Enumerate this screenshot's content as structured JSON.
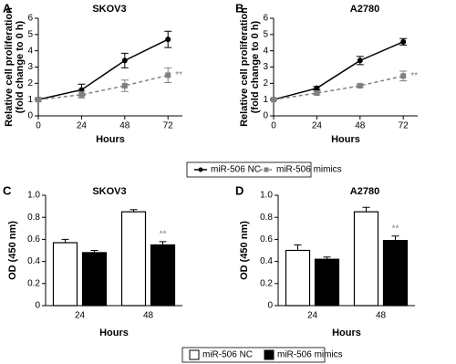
{
  "chart_data": [
    {
      "type": "line",
      "panel": "A",
      "title": "SKOV3",
      "xlabel": "Hours",
      "ylabel": [
        "Relative cell proliferation",
        "(fold change to 0 h)"
      ],
      "x": [
        0,
        24,
        48,
        72
      ],
      "xlim": [
        0,
        80
      ],
      "xticks": [
        0,
        24,
        48,
        72
      ],
      "ylim": [
        0,
        6
      ],
      "yticks": [
        0,
        1,
        2,
        3,
        4,
        5,
        6
      ],
      "series": [
        {
          "name": "miR-506 NC",
          "color": "#000000",
          "marker": "circle",
          "linestyle": "solid",
          "values": [
            1,
            1.6,
            3.4,
            4.7
          ],
          "errors": [
            0.1,
            0.35,
            0.45,
            0.5
          ]
        },
        {
          "name": "miR-506 mimics",
          "color": "#808080",
          "marker": "square",
          "linestyle": "dashed",
          "values": [
            1,
            1.3,
            1.85,
            2.5
          ],
          "errors": [
            0.1,
            0.2,
            0.35,
            0.45
          ]
        }
      ],
      "annotation": "**"
    },
    {
      "type": "line",
      "panel": "B",
      "title": "A2780",
      "xlabel": "Hours",
      "ylabel": [
        "Relative cell proliferation",
        "(fold change to 0 h)"
      ],
      "x": [
        0,
        24,
        48,
        72
      ],
      "xlim": [
        0,
        80
      ],
      "xticks": [
        0,
        24,
        48,
        72
      ],
      "ylim": [
        0,
        6
      ],
      "yticks": [
        0,
        1,
        2,
        3,
        4,
        5,
        6
      ],
      "series": [
        {
          "color": "#000000",
          "marker": "circle",
          "linestyle": "solid",
          "values": [
            1,
            1.7,
            3.4,
            4.55
          ],
          "errors": [
            0.05,
            0.1,
            0.25,
            0.2
          ]
        },
        {
          "color": "#808080",
          "marker": "square",
          "linestyle": "dashed",
          "values": [
            1,
            1.4,
            1.85,
            2.45
          ],
          "errors": [
            0.05,
            0.1,
            0.1,
            0.3
          ]
        }
      ],
      "annotation": "**"
    },
    {
      "type": "bar",
      "panel": "C",
      "title": "SKOV3",
      "xlabel": "Hours",
      "ylabel": [
        "OD (450 nm)"
      ],
      "categories": [
        "24",
        "48"
      ],
      "ylim": [
        0,
        1
      ],
      "yticks": [
        0,
        0.2,
        0.4,
        0.6,
        0.8,
        {
          "value": 1,
          "label": "1.0"
        }
      ],
      "series": [
        {
          "name": "miR-506 NC",
          "color": "#ffffff",
          "values": [
            0.57,
            0.85
          ],
          "errors": [
            0.03,
            0.02
          ]
        },
        {
          "name": "miR-506 mimics",
          "color": "#000000",
          "values": [
            0.48,
            0.55
          ],
          "errors": [
            0.02,
            0.03
          ]
        }
      ],
      "annotation": "**"
    },
    {
      "type": "bar",
      "panel": "D",
      "title": "A2780",
      "xlabel": "Hours",
      "ylabel": [
        "OD (450 nm)"
      ],
      "categories": [
        "24",
        "48"
      ],
      "ylim": [
        0,
        1
      ],
      "yticks": [
        0,
        0.2,
        0.4,
        0.6,
        0.8,
        {
          "value": 1,
          "label": "1.0"
        }
      ],
      "series": [
        {
          "color": "#ffffff",
          "values": [
            0.5,
            0.85
          ],
          "errors": [
            0.05,
            0.04
          ]
        },
        {
          "color": "#000000",
          "values": [
            0.42,
            0.59
          ],
          "errors": [
            0.02,
            0.04
          ]
        }
      ],
      "annotation": "**"
    }
  ]
}
